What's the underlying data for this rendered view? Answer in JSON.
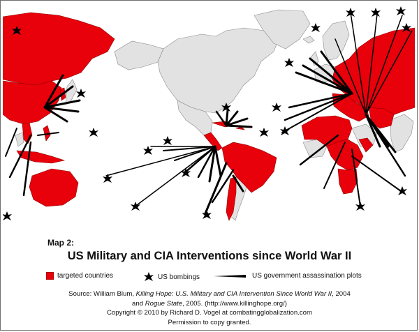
{
  "map_label": "Map 2:",
  "title": "US Military and CIA Interventions since World War II",
  "legend": {
    "targeted": "targeted countries",
    "bombings": "US bombings",
    "plots": "US government assassination plots"
  },
  "source": {
    "prefix": "Source:  William Blum, ",
    "book1": "Killing Hope: U.S. Military and CIA Intervention Since World War II",
    "year1": ", 2004",
    "and": "and ",
    "book2": "Rogue State",
    "rest": ", 2005. (http://www.killinghope.org/)",
    "copyright": "Copyright  ©  2010 by Richard D. Vogel at combatingglobalization.com",
    "permission": "Permission to copy granted."
  },
  "colors": {
    "targeted": "#e8000b",
    "other": "#e2e2e2",
    "water": "#ffffff",
    "marker": "#000000"
  },
  "map_features": {
    "red_regions": [
      "North America: none",
      "Central America",
      "Caribbean",
      "South America (north)",
      "Peru",
      "Brazil",
      "Bolivia",
      "Chile",
      "Europe (southern/eastern)",
      "USSR",
      "China",
      "Korea",
      "Vietnam",
      "Indonesia",
      "Philippines",
      "Australia",
      "Middle East",
      "Africa (west, central, south)"
    ]
  }
}
